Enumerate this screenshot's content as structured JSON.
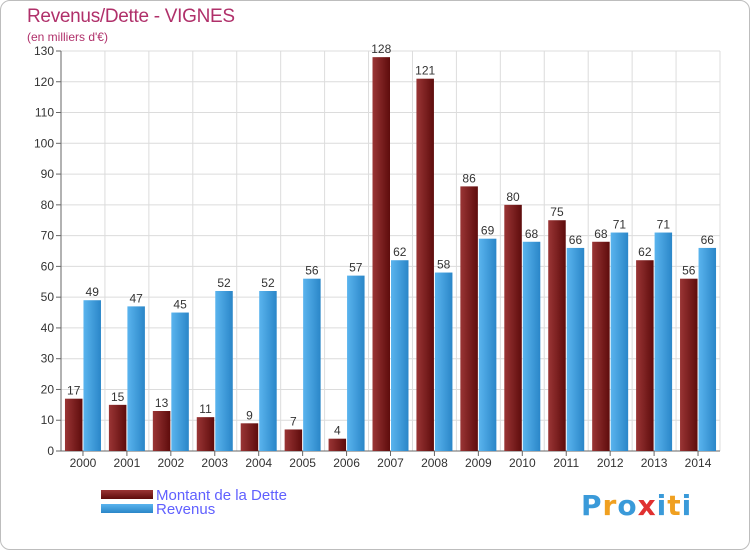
{
  "title": "Revenus/Dette - VIGNES",
  "subtitle": "(en milliers d'€)",
  "colors": {
    "title": "#b0306a",
    "dette": "#7a1a1a",
    "revenus": "#3a9ad9",
    "legend_text": "#6060ff"
  },
  "chart_data": {
    "type": "bar",
    "categories": [
      "2000",
      "2001",
      "2002",
      "2003",
      "2004",
      "2005",
      "2006",
      "2007",
      "2008",
      "2009",
      "2010",
      "2011",
      "2012",
      "2013",
      "2014"
    ],
    "series": [
      {
        "name": "Montant de la Dette",
        "values": [
          17,
          15,
          13,
          11,
          9,
          7,
          4,
          128,
          121,
          86,
          80,
          75,
          68,
          62,
          56
        ]
      },
      {
        "name": "Revenus",
        "values": [
          49,
          47,
          45,
          52,
          52,
          56,
          57,
          62,
          58,
          69,
          68,
          66,
          71,
          71,
          66
        ]
      }
    ],
    "y_ticks": [
      0,
      10,
      20,
      30,
      40,
      50,
      60,
      70,
      80,
      90,
      100,
      110,
      120,
      130
    ],
    "ylim": [
      0,
      130
    ],
    "grid": true,
    "legend_position": "bottom-left"
  },
  "legend": {
    "items": [
      {
        "label": "Montant de la Dette"
      },
      {
        "label": "Revenus"
      }
    ]
  },
  "logo": {
    "text": "Proxiti",
    "letters": [
      "P",
      "r",
      "o",
      "x",
      "i",
      "t",
      "i"
    ],
    "letter_colors": [
      "#3a9ad9",
      "#f0a020",
      "#3a9ad9",
      "#e03030",
      "#3a9ad9",
      "#f0a020",
      "#3a9ad9"
    ]
  }
}
